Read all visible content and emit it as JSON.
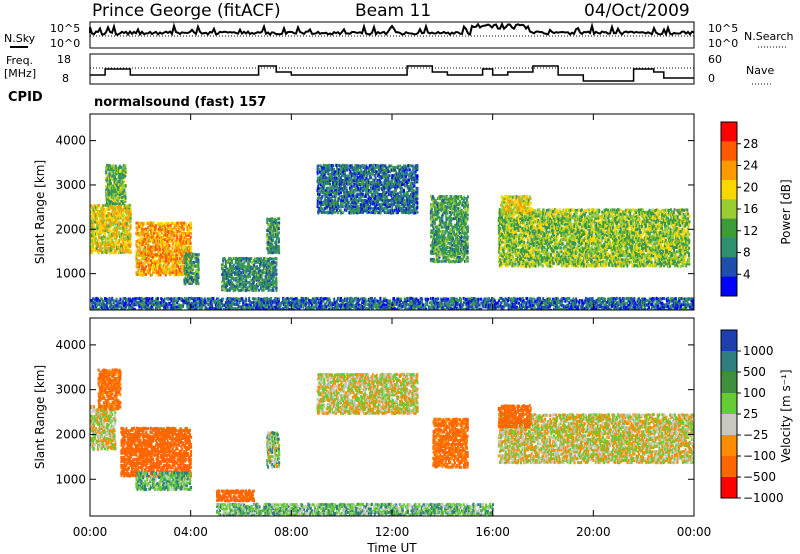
{
  "header": {
    "station": "Prince George (fitACF)",
    "beam": "Beam 11",
    "date": "04/Oct/2009"
  },
  "noise_panel": {
    "left_label": "N.Sky",
    "right_label": "N.Search",
    "left_ticks": [
      "10^5",
      "10^0"
    ],
    "right_ticks": [
      "10^5",
      "10^0"
    ]
  },
  "freq_panel": {
    "left_label_1": "Freq.",
    "left_label_2": "[MHz]",
    "left_ticks": [
      "18",
      "8"
    ],
    "right_label": "Nave",
    "right_ticks": [
      "60",
      "0"
    ]
  },
  "cpid_panel": {
    "label": "CPID",
    "program": "normalsound (fast) 157"
  },
  "power_colorbar": {
    "label": "Power [dB]",
    "ticks": [
      "28",
      "24",
      "20",
      "16",
      "12",
      "8",
      "4"
    ],
    "colors": [
      "#ff0000",
      "#ff5a00",
      "#ff9900",
      "#ffd700",
      "#9acd32",
      "#3c9c3c",
      "#2f8f6f",
      "#1f4fa8",
      "#0000ff"
    ]
  },
  "velocity_colorbar": {
    "label": "Velocity [m s⁻¹]",
    "ticks": [
      "1000",
      "500",
      "100",
      "25",
      "−25",
      "−100",
      "−500",
      "−1000"
    ],
    "colors": [
      "#1f3fb0",
      "#2f7f7f",
      "#3f8f3f",
      "#66cc33",
      "#c8c8c0",
      "#ff8c00",
      "#ff6600",
      "#ff0000"
    ]
  },
  "chart_data": [
    {
      "type": "heatmap",
      "title": "",
      "xlabel": "",
      "ylabel": "Slant Range [km]",
      "ylim": [
        180,
        4600
      ],
      "yticks": [
        1000,
        2000,
        3000,
        4000
      ],
      "xlim": [
        0,
        24
      ],
      "quantity": "Power [dB]",
      "zlim": [
        0,
        30
      ],
      "scatter_regions": [
        {
          "t0": 0.0,
          "t1": 1.6,
          "r0": 1500,
          "r1": 2600,
          "z": 18
        },
        {
          "t0": 0.6,
          "t1": 1.4,
          "r0": 2600,
          "r1": 3500,
          "z": 12
        },
        {
          "t0": 1.8,
          "t1": 4.0,
          "r0": 1000,
          "r1": 2200,
          "z": 22
        },
        {
          "t0": 3.7,
          "t1": 4.3,
          "r0": 800,
          "r1": 1500,
          "z": 10
        },
        {
          "t0": 5.2,
          "t1": 7.4,
          "r0": 650,
          "r1": 1400,
          "z": 8
        },
        {
          "t0": 7.0,
          "t1": 7.5,
          "r0": 1500,
          "r1": 2300,
          "z": 9
        },
        {
          "t0": 9.0,
          "t1": 13.0,
          "r0": 2400,
          "r1": 3500,
          "z": 6
        },
        {
          "t0": 13.5,
          "t1": 15.0,
          "r0": 1300,
          "r1": 2800,
          "z": 10
        },
        {
          "t0": 16.2,
          "t1": 23.8,
          "r0": 1200,
          "r1": 2500,
          "z": 14
        },
        {
          "t0": 16.3,
          "t1": 17.5,
          "r0": 2400,
          "r1": 2800,
          "z": 18
        },
        {
          "t0": 0.0,
          "t1": 24.0,
          "r0": 180,
          "r1": 500,
          "z": 5
        }
      ]
    },
    {
      "type": "heatmap",
      "title": "",
      "xlabel": "Time UT",
      "ylabel": "Slant Range [km]",
      "ylim": [
        180,
        4600
      ],
      "yticks": [
        1000,
        2000,
        3000,
        4000
      ],
      "xlim": [
        0,
        24
      ],
      "xticks": [
        "00:00",
        "04:00",
        "08:00",
        "12:00",
        "16:00",
        "20:00",
        "00:00"
      ],
      "quantity": "Velocity [m s⁻¹]",
      "zlim": [
        -1000,
        1000
      ],
      "scatter_regions": [
        {
          "t0": 0.0,
          "t1": 1.0,
          "r0": 1700,
          "r1": 2700,
          "z": 0
        },
        {
          "t0": 0.3,
          "t1": 1.2,
          "r0": 2600,
          "r1": 3500,
          "z": -150
        },
        {
          "t0": 1.2,
          "t1": 4.0,
          "r0": 1100,
          "r1": 2200,
          "z": -200
        },
        {
          "t0": 1.8,
          "t1": 4.0,
          "r0": 800,
          "r1": 1200,
          "z": 80
        },
        {
          "t0": 5.0,
          "t1": 6.5,
          "r0": 550,
          "r1": 800,
          "z": -300
        },
        {
          "t0": 7.0,
          "t1": 7.5,
          "r0": 1300,
          "r1": 2100,
          "z": 50
        },
        {
          "t0": 9.0,
          "t1": 13.0,
          "r0": 2500,
          "r1": 3400,
          "z": 0
        },
        {
          "t0": 13.6,
          "t1": 15.0,
          "r0": 1300,
          "r1": 2400,
          "z": -150
        },
        {
          "t0": 16.2,
          "t1": 24.0,
          "r0": 1400,
          "r1": 2500,
          "z": 0
        },
        {
          "t0": 16.2,
          "t1": 17.5,
          "r0": 2200,
          "r1": 2700,
          "z": -200
        },
        {
          "t0": 5.0,
          "t1": 16.0,
          "r0": 180,
          "r1": 500,
          "z": 70
        }
      ]
    },
    {
      "type": "line",
      "title": "",
      "xlim": [
        0,
        24
      ],
      "series": [
        {
          "name": "Freq.",
          "x": [
            0,
            0.6,
            0.6,
            1.6,
            1.6,
            6.7,
            6.7,
            7.4,
            7.4,
            8.0,
            8.0,
            12.6,
            12.6,
            13.6,
            13.6,
            14.2,
            14.2,
            15.6,
            15.6,
            16.0,
            16.0,
            16.6,
            16.6,
            17.6,
            17.6,
            18.6,
            18.6,
            19.6,
            19.6,
            21.6,
            21.6,
            22.4,
            22.4,
            22.8,
            22.8,
            24
          ],
          "y": [
            11,
            11,
            13,
            13,
            11,
            11,
            14,
            14,
            12,
            12,
            11,
            11,
            14,
            14,
            12,
            12,
            11,
            11,
            13,
            13,
            11,
            11,
            12,
            12,
            14,
            14,
            11,
            11,
            9,
            9,
            13,
            13,
            12,
            12,
            10,
            10
          ]
        },
        {
          "name": "Nave",
          "x": [
            0,
            24
          ],
          "y": [
            32,
            32
          ]
        }
      ]
    }
  ]
}
